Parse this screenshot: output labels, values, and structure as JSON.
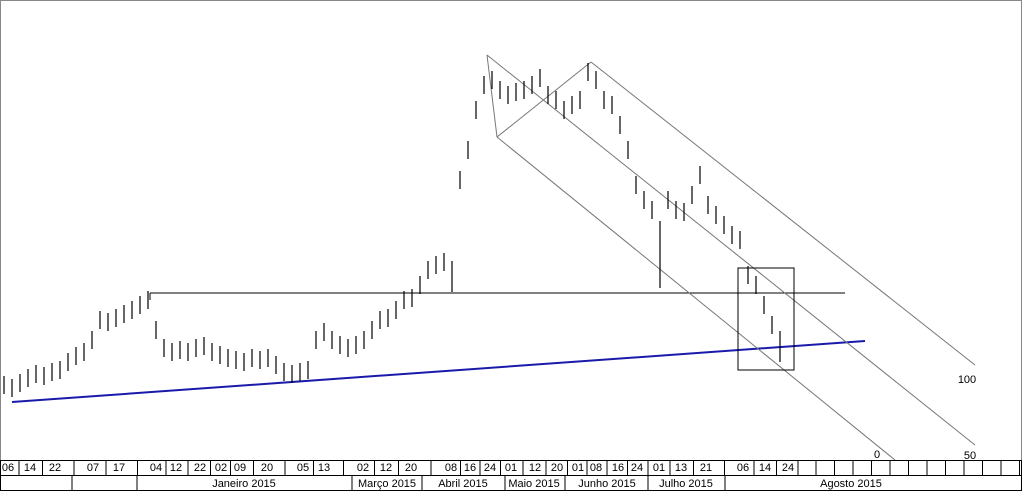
{
  "chart_data": {
    "type": "ohlc",
    "ylim": [
      0,
      460
    ],
    "color": "#000000",
    "highs": [
      84,
      81,
      86,
      91,
      95,
      93,
      97,
      99,
      107,
      113,
      117,
      129,
      149,
      147,
      151,
      155,
      159,
      164,
      169,
      139,
      121,
      117,
      119,
      117,
      121,
      123,
      117,
      114,
      111,
      109,
      107,
      111,
      109,
      111,
      104,
      97,
      95,
      97,
      99,
      129,
      137,
      129,
      124,
      121,
      124,
      129,
      139,
      149,
      151,
      159,
      169,
      171,
      184,
      199,
      204,
      207,
      199,
      289,
      319,
      359,
      384,
      389,
      379,
      374,
      377,
      379,
      384,
      391,
      374,
      369,
      359,
      364,
      369,
      397,
      389,
      369,
      364,
      344,
      319,
      284,
      269,
      259,
      239,
      269,
      259,
      257,
      274,
      294,
      264,
      254,
      244,
      234,
      229,
      194,
      184,
      164,
      144,
      129
    ],
    "lows": [
      66,
      63,
      68,
      73,
      77,
      75,
      79,
      81,
      89,
      95,
      99,
      111,
      131,
      129,
      133,
      137,
      141,
      146,
      151,
      121,
      103,
      99,
      101,
      99,
      103,
      105,
      99,
      96,
      93,
      91,
      89,
      93,
      91,
      93,
      86,
      79,
      77,
      79,
      81,
      111,
      119,
      111,
      106,
      103,
      106,
      111,
      121,
      131,
      133,
      141,
      151,
      153,
      166,
      181,
      186,
      189,
      168,
      271,
      301,
      341,
      366,
      371,
      361,
      356,
      359,
      361,
      366,
      373,
      356,
      351,
      341,
      346,
      351,
      379,
      371,
      351,
      346,
      326,
      301,
      266,
      251,
      241,
      172,
      251,
      241,
      239,
      256,
      276,
      246,
      236,
      226,
      216,
      211,
      176,
      166,
      146,
      126,
      98
    ],
    "x_tick_labels": [
      "06",
      "14",
      "22",
      "07",
      "17",
      "04",
      "12",
      "22",
      "02",
      "09",
      "20",
      "05",
      "13",
      "02",
      "12",
      "20",
      "08",
      "16",
      "24",
      "01",
      "12",
      "20",
      "01",
      "08",
      "16",
      "24",
      "01",
      "13",
      "21",
      "06",
      "14",
      "24"
    ],
    "month_labels": [
      "Janeiro 2015",
      "Março 2015",
      "Abril 2015",
      "Maio 2015",
      "Junho 2015",
      "Julho 2015",
      "Agosto 2015"
    ],
    "channel_labels": [
      "100",
      "50",
      "0"
    ]
  }
}
